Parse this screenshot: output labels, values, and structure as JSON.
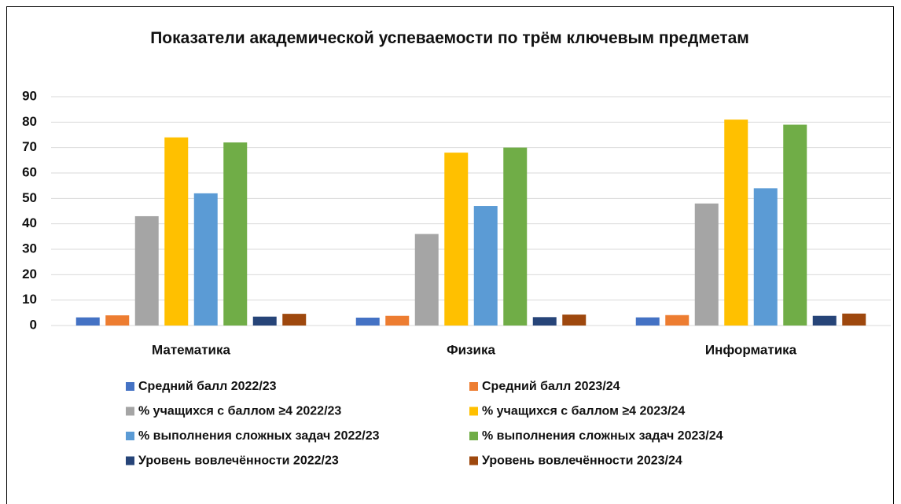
{
  "chart_data": {
    "type": "bar",
    "title": "Показатели академической успеваемости по трём ключевым предметам",
    "categories": [
      "Математика",
      "Физика",
      "Информатика"
    ],
    "series": [
      {
        "name": "Средний балл 2022/23",
        "color": "#4472c4",
        "values": [
          3.2,
          3.1,
          3.2
        ]
      },
      {
        "name": "Средний балл 2023/24",
        "color": "#ed7d31",
        "values": [
          4.0,
          3.8,
          4.1
        ]
      },
      {
        "name": "% учащихся с баллом ≥4 2022/23",
        "color": "#a5a5a5",
        "values": [
          43,
          36,
          48
        ]
      },
      {
        "name": "% учащихся с баллом ≥4 2023/24",
        "color": "#ffc000",
        "values": [
          74,
          68,
          81
        ]
      },
      {
        "name": "% выполнения сложных задач 2022/23",
        "color": "#5b9bd5",
        "values": [
          52,
          47,
          54
        ]
      },
      {
        "name": "% выполнения сложных задач 2023/24",
        "color": "#70ad47",
        "values": [
          72,
          70,
          79
        ]
      },
      {
        "name": "Уровень вовлечённости 2022/23",
        "color": "#264478",
        "values": [
          3.5,
          3.3,
          3.8
        ]
      },
      {
        "name": "Уровень вовлечённости 2023/24",
        "color": "#9e480e",
        "values": [
          4.6,
          4.3,
          4.7
        ]
      }
    ],
    "ylim": [
      0,
      90
    ],
    "yticks": [
      0,
      10,
      20,
      30,
      40,
      50,
      60,
      70,
      80,
      90
    ],
    "grid": true,
    "legend": "bottom"
  }
}
